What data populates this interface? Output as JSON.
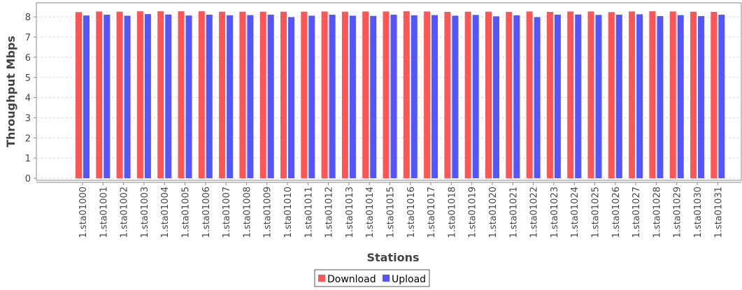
{
  "chart_data": {
    "type": "bar",
    "title": "",
    "xlabel": "Stations",
    "ylabel": "Throughput Mbps",
    "ylim": [
      0,
      8.6
    ],
    "yticks": [
      0,
      1,
      2,
      3,
      4,
      5,
      6,
      7,
      8
    ],
    "grid": true,
    "legend_position": "bottom-center",
    "categories": [
      "1.sta01000",
      "1.sta01001",
      "1.sta01002",
      "1.sta01003",
      "1.sta01004",
      "1.sta01005",
      "1.sta01006",
      "1.sta01007",
      "1.sta01008",
      "1.sta01009",
      "1.sta01010",
      "1.sta01011",
      "1.sta01012",
      "1.sta01013",
      "1.sta01014",
      "1.sta01015",
      "1.sta01016",
      "1.sta01017",
      "1.sta01018",
      "1.sta01019",
      "1.sta01020",
      "1.sta01021",
      "1.sta01022",
      "1.sta01023",
      "1.sta01024",
      "1.sta01025",
      "1.sta01026",
      "1.sta01027",
      "1.sta01028",
      "1.sta01029",
      "1.sta01030",
      "1.sta01031"
    ],
    "series": [
      {
        "name": "Download",
        "color": "#ff5555",
        "values": [
          8.24,
          8.27,
          8.26,
          8.28,
          8.28,
          8.28,
          8.28,
          8.26,
          8.26,
          8.26,
          8.26,
          8.26,
          8.27,
          8.26,
          8.27,
          8.27,
          8.28,
          8.27,
          8.25,
          8.26,
          8.26,
          8.25,
          8.27,
          8.25,
          8.27,
          8.27,
          8.24,
          8.27,
          8.28,
          8.27,
          8.26,
          8.25
        ]
      },
      {
        "name": "Upload",
        "color": "#5555ff",
        "values": [
          8.07,
          8.11,
          8.06,
          8.14,
          8.12,
          8.07,
          8.11,
          8.08,
          8.09,
          8.11,
          7.99,
          8.06,
          8.11,
          8.06,
          8.05,
          8.11,
          8.08,
          8.09,
          8.06,
          8.1,
          8.03,
          8.08,
          7.99,
          8.11,
          8.12,
          8.1,
          8.11,
          8.13,
          8.04,
          8.09,
          8.04,
          8.11
        ]
      }
    ]
  }
}
